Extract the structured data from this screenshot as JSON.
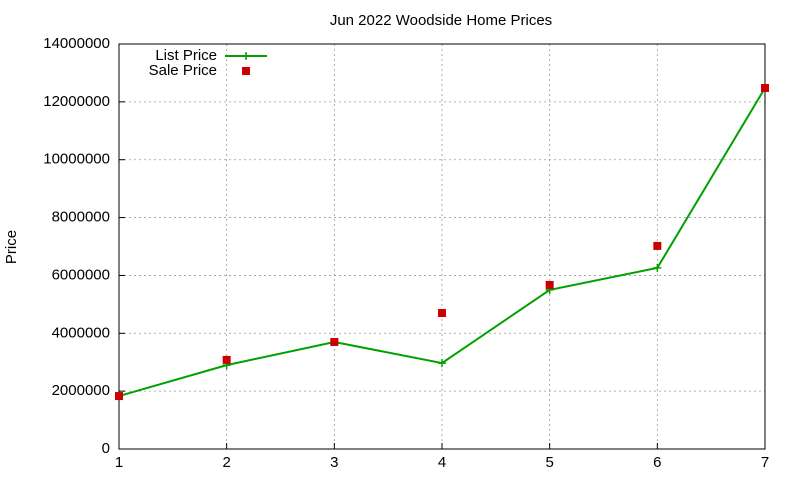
{
  "chart_data": {
    "type": "line",
    "title": "Jun 2022 Woodside Home Prices",
    "y_label": "Price",
    "x": [
      1,
      2,
      3,
      4,
      5,
      6,
      7
    ],
    "series": [
      {
        "name": "List Price",
        "color": "#00a000",
        "style": "linespoints",
        "values": [
          1830000,
          2900000,
          3700000,
          2970000,
          5500000,
          6260000,
          12480000
        ]
      },
      {
        "name": "Sale Price",
        "color": "#cc0000",
        "style": "points",
        "values": [
          1830000,
          3080000,
          3700000,
          4700000,
          5670000,
          7020000,
          12480000
        ]
      }
    ],
    "xlim": [
      1,
      7
    ],
    "xticks": [
      1,
      2,
      3,
      4,
      5,
      6,
      7
    ],
    "ylim": [
      0,
      14000000
    ],
    "yticks": [
      0,
      2000000,
      4000000,
      6000000,
      8000000,
      10000000,
      12000000,
      14000000
    ],
    "grid": true,
    "legend": "top-left"
  }
}
